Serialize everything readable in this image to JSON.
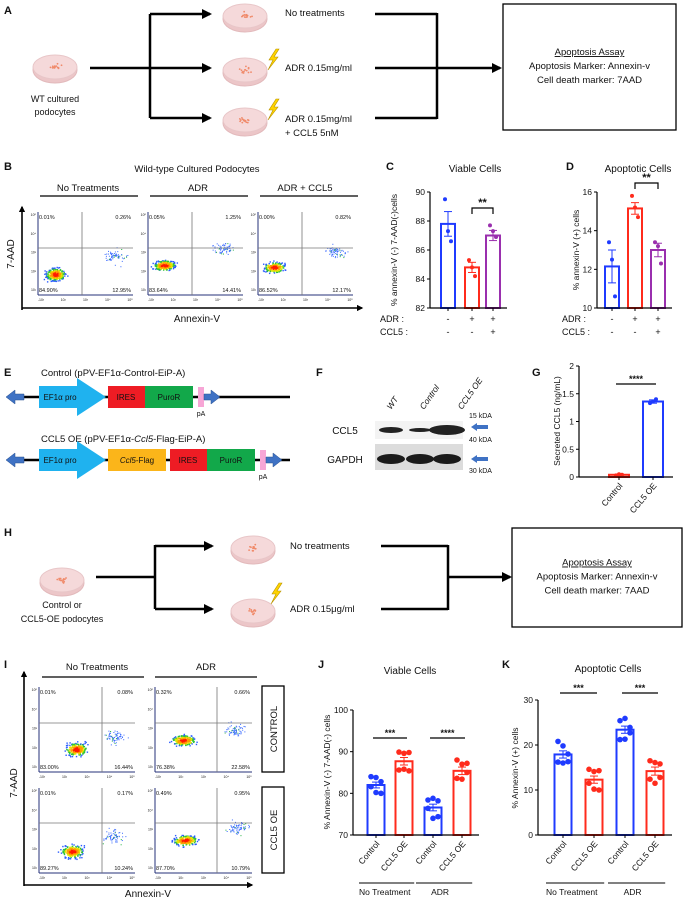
{
  "panel_labels": [
    "A",
    "B",
    "C",
    "D",
    "E",
    "F",
    "G",
    "H",
    "I",
    "J",
    "K"
  ],
  "colors": {
    "blue": "#1f3bff",
    "red": "#ff2b1c",
    "purple": "#9a2fae",
    "ef1a_pro": "#1fb2ef",
    "ires": "#ee1c24",
    "puror": "#12a84a",
    "ccl5_flag": "#fbb51a",
    "pA": "#f7a6d6",
    "end_arrow": "#3f72c4",
    "lightning": "#ffd400",
    "dish": "#f5d9da"
  },
  "panel_a": {
    "source_label": [
      "WT cultured",
      "podocytes"
    ],
    "treatments": [
      [
        "No treatments"
      ],
      [
        "ADR 0.15mg/ml"
      ],
      [
        "ADR 0.15mg/ml",
        "+ CCL5 5nM"
      ]
    ],
    "assay": {
      "title": "Apoptosis Assay",
      "lines": [
        "Apoptosis Marker: Annexin-v",
        "Cell death marker: 7AAD"
      ]
    }
  },
  "panel_b": {
    "title": "Wild-type Cultured Podocytes",
    "conditions": [
      "No Treatments",
      "ADR",
      "ADR + CCL5"
    ],
    "ylabel": "7-AAD",
    "xlabel": "Annexin-V",
    "y_ticks": [
      "10⁵",
      "10⁴",
      "10³",
      "10²",
      "10¹"
    ],
    "x_ticks": [
      "-10³",
      "10²",
      "10³",
      "10⁴",
      "10⁵"
    ],
    "quadrants": [
      [
        "0.01%",
        "0.26%",
        "84.90%",
        "12.95%"
      ],
      [
        "0.05%",
        "1.25%",
        "83.64%",
        "14.41%"
      ],
      [
        "0.00%",
        "0.82%",
        "86.52%",
        "12.17%"
      ]
    ]
  },
  "panel_e": {
    "constructs": [
      {
        "title_parts": [
          "Control (pPV-EF1α-Control-EiP-A)"
        ],
        "italic_index": -1,
        "elements": [
          "EF1α pro",
          "IRES",
          "PuroR"
        ],
        "pA": "pA"
      },
      {
        "title_parts": [
          "CCL5 OE (pPV-EF1α-",
          "Ccl5",
          "-Flag-EiP-A)"
        ],
        "italic_index": 1,
        "elements": [
          "EF1α pro",
          "Ccl5",
          "-Flag",
          "IRES",
          "PuroR"
        ],
        "pA": "pA"
      }
    ]
  },
  "panel_f": {
    "lanes": [
      "WT",
      "Control",
      "CCL5 OE"
    ],
    "rows": [
      "CCL5",
      "GAPDH"
    ],
    "markers": [
      "15 kDA",
      "40 kDA",
      "30 kDA"
    ]
  },
  "panel_h": {
    "source_label": [
      "Control or",
      "CCL5-OE podocytes"
    ],
    "treatments": [
      [
        "No treatments"
      ],
      [
        "ADR 0.15μg/ml"
      ]
    ],
    "assay": {
      "title": "Apoptosis Assay",
      "lines": [
        "Apoptosis Marker: Annexin-v",
        "Cell death marker: 7AAD"
      ]
    }
  },
  "panel_i": {
    "conditions": [
      "No Treatments",
      "ADR"
    ],
    "rows": [
      "CONTROL",
      "CCL5 OE"
    ],
    "ylabel": "7-AAD",
    "xlabel": "Annexin-V",
    "y_ticks": [
      "10⁵",
      "10⁴",
      "10³",
      "10²",
      "10¹"
    ],
    "x_ticks": [
      "-10³",
      "10²",
      "10³",
      "10⁴",
      "10⁵"
    ],
    "quadrants": [
      [
        "0.01%",
        "0.08%",
        "83.00%",
        "16.44%"
      ],
      [
        "0.32%",
        "0.66%",
        "76.38%",
        "22.58%"
      ],
      [
        "0.01%",
        "0.17%",
        "89.27%",
        "10.24%"
      ],
      [
        "0.49%",
        "0.95%",
        "87.70%",
        "10.79%"
      ]
    ]
  },
  "chart_data": [
    {
      "panel": "C",
      "type": "bar",
      "title": "Viable Cells",
      "ylabel": "% annexin-V (-) 7-AAD(-)cells",
      "ylim": [
        82,
        90
      ],
      "yticks": [
        "82",
        "84",
        "86",
        "88",
        "90"
      ],
      "condition_rows": [
        {
          "label": "ADR :",
          "values": [
            "-",
            "+",
            "+"
          ]
        },
        {
          "label": "CCL5 :",
          "values": [
            "-",
            "-",
            "+"
          ]
        }
      ],
      "bars": [
        {
          "value": 87.8,
          "sem": 0.85,
          "color": "#1f3bff",
          "points": [
            89.5,
            87.3,
            86.6
          ]
        },
        {
          "value": 84.8,
          "sem": 0.35,
          "color": "#ff2b1c",
          "points": [
            85.3,
            84.8,
            84.2
          ]
        },
        {
          "value": 87.0,
          "sem": 0.35,
          "color": "#9a2fae",
          "points": [
            87.7,
            87.3,
            86.9
          ]
        }
      ],
      "significance": [
        {
          "between": [
            1,
            2
          ],
          "label": "**"
        }
      ]
    },
    {
      "panel": "D",
      "type": "bar",
      "title": "Apoptotic Cells",
      "ylabel": "% annexin-V (+) cells",
      "ylim": [
        10,
        16
      ],
      "yticks": [
        "10",
        "12",
        "14",
        "16"
      ],
      "condition_rows": [
        {
          "label": "ADR :",
          "values": [
            "-",
            "+",
            "+"
          ]
        },
        {
          "label": "CCL5 :",
          "values": [
            "-",
            "-",
            "+"
          ]
        }
      ],
      "bars": [
        {
          "value": 12.15,
          "sem": 0.85,
          "color": "#1f3bff",
          "points": [
            13.4,
            12.5,
            10.6
          ]
        },
        {
          "value": 15.15,
          "sem": 0.3,
          "color": "#ff2b1c",
          "points": [
            15.8,
            15.2,
            14.7
          ]
        },
        {
          "value": 13.0,
          "sem": 0.35,
          "color": "#9a2fae",
          "points": [
            13.4,
            13.2,
            12.3
          ]
        }
      ],
      "significance": [
        {
          "between": [
            1,
            2
          ],
          "label": "**"
        }
      ]
    },
    {
      "panel": "G",
      "type": "bar",
      "title": "",
      "ylabel": "Secreted CCL5 (ng/mL)",
      "ylim": [
        0,
        2
      ],
      "yticks": [
        "0",
        "0.5",
        "1",
        "1.5",
        "2"
      ],
      "categories": [
        "Control",
        "CCL5 OE"
      ],
      "bars": [
        {
          "value": 0.04,
          "sem": 0.01,
          "color": "#ff2b1c",
          "points": [
            0.03,
            0.05,
            0.04
          ]
        },
        {
          "value": 1.36,
          "sem": 0.03,
          "color": "#1f3bff",
          "points": [
            1.33,
            1.36,
            1.4
          ]
        }
      ],
      "significance": [
        {
          "between": [
            0,
            1
          ],
          "label": "****"
        }
      ]
    },
    {
      "panel": "J",
      "type": "bar",
      "title": "Viable Cells",
      "ylabel": "% Annexin-V (-) 7-AAD(-) cells",
      "ylim": [
        70,
        100
      ],
      "yticks": [
        "70",
        "80",
        "90",
        "100"
      ],
      "categories": [
        "Control",
        "CCL5 OE",
        "Control",
        "CCL5 OE"
      ],
      "groups": [
        {
          "label": "No Treatment",
          "members": [
            0,
            1
          ]
        },
        {
          "label": "ADR",
          "members": [
            2,
            3
          ]
        }
      ],
      "bars": [
        {
          "value": 82.0,
          "sem": 0.7,
          "color": "#1f3bff",
          "points": [
            84.0,
            83.8,
            82.8,
            81.6,
            80.2,
            80.0
          ]
        },
        {
          "value": 87.7,
          "sem": 0.9,
          "color": "#ff2b1c",
          "points": [
            89.9,
            89.6,
            89.8,
            85.6,
            85.8,
            85.4
          ]
        },
        {
          "value": 76.6,
          "sem": 0.8,
          "color": "#1f3bff",
          "points": [
            78.4,
            78.8,
            78.2,
            76.4,
            74.0,
            74.4
          ]
        },
        {
          "value": 85.4,
          "sem": 0.9,
          "color": "#ff2b1c",
          "points": [
            88.0,
            87.0,
            87.2,
            83.6,
            83.4,
            85.0
          ]
        }
      ],
      "significance": [
        {
          "between": [
            0,
            1
          ],
          "label": "***"
        },
        {
          "between": [
            2,
            3
          ],
          "label": "****"
        }
      ]
    },
    {
      "panel": "K",
      "type": "bar",
      "title": "Apoptotic Cells",
      "ylabel": "% Annexin-V (+) cells",
      "ylim": [
        0,
        30
      ],
      "yticks": [
        "0",
        "10",
        "20",
        "30"
      ],
      "categories": [
        "Control",
        "CCL5 OE",
        "Control",
        "CCL5 OE"
      ],
      "groups": [
        {
          "label": "No Treatment",
          "members": [
            0,
            1
          ]
        },
        {
          "label": "ADR",
          "members": [
            2,
            3
          ]
        }
      ],
      "bars": [
        {
          "value": 17.9,
          "sem": 0.8,
          "color": "#1f3bff",
          "points": [
            20.8,
            19.8,
            18.0,
            16.2,
            16.0,
            16.3
          ]
        },
        {
          "value": 12.3,
          "sem": 0.8,
          "color": "#ff2b1c",
          "points": [
            14.6,
            14.1,
            14.3,
            11.5,
            10.2,
            10.0
          ]
        },
        {
          "value": 23.4,
          "sem": 0.8,
          "color": "#1f3bff",
          "points": [
            25.4,
            25.9,
            22.7,
            21.2,
            21.3,
            23.9
          ]
        },
        {
          "value": 14.2,
          "sem": 0.9,
          "color": "#ff2b1c",
          "points": [
            16.5,
            16.1,
            15.8,
            12.4,
            11.5,
            12.8
          ]
        }
      ],
      "significance": [
        {
          "between": [
            0,
            1
          ],
          "label": "***"
        },
        {
          "between": [
            2,
            3
          ],
          "label": "***"
        }
      ]
    }
  ]
}
